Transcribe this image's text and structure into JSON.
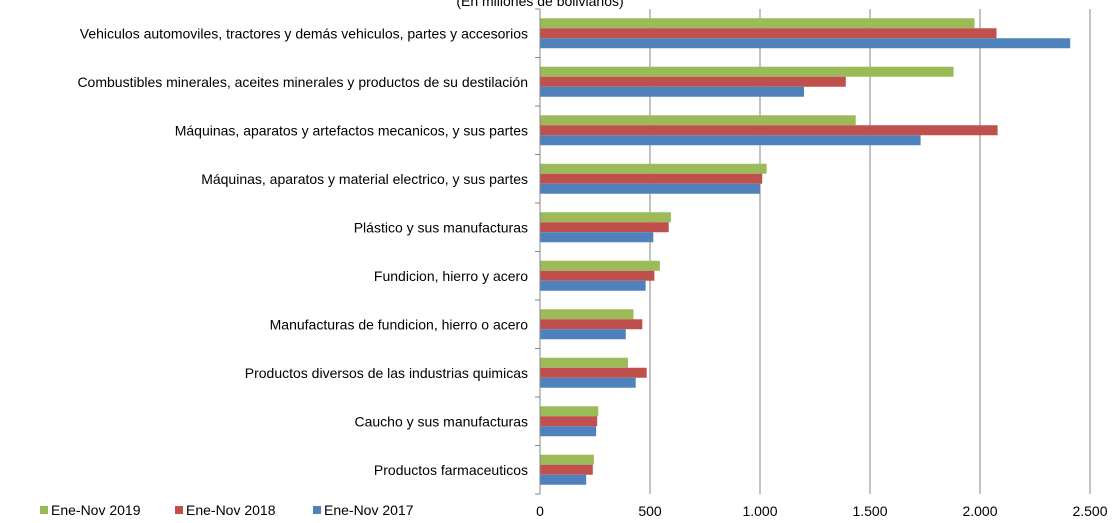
{
  "chart_data": {
    "type": "bar",
    "orientation": "horizontal",
    "subtitle": "(En millones de bolivianos)",
    "categories": [
      "Vehiculos automoviles, tractores y demás vehiculos, partes y accesorios",
      "Combustibles minerales, aceites minerales y productos de su destilación",
      "Máquinas, aparatos y artefactos mecanicos, y sus partes",
      "Máquinas, aparatos y material electrico, y sus partes",
      "Plástico y sus manufacturas",
      "Fundicion, hierro y acero",
      "Manufacturas de fundicion, hierro o acero",
      "Productos diversos de las industrias quimicas",
      "Caucho y sus manufacturas",
      "Productos farmaceuticos"
    ],
    "series": [
      {
        "name": "Ene-Nov 2019",
        "color": "#9BBB59",
        "values": [
          1975,
          1880,
          1435,
          1030,
          595,
          545,
          425,
          400,
          265,
          245
        ]
      },
      {
        "name": "Ene-Nov 2018",
        "color": "#C0504D",
        "values": [
          2075,
          1390,
          2080,
          1010,
          585,
          520,
          465,
          485,
          260,
          240
        ]
      },
      {
        "name": "Ene-Nov 2017",
        "color": "#4F81BD",
        "values": [
          2410,
          1200,
          1730,
          1000,
          515,
          480,
          390,
          435,
          255,
          210
        ]
      }
    ],
    "xlim": [
      0,
      2500
    ],
    "xticks": [
      0,
      500,
      1000,
      1500,
      2000,
      2500
    ],
    "xtick_labels": [
      "0",
      "500",
      "1.000",
      "1.500",
      "2.000",
      "2.500"
    ],
    "grid": true,
    "legend_position": "bottom-left"
  }
}
